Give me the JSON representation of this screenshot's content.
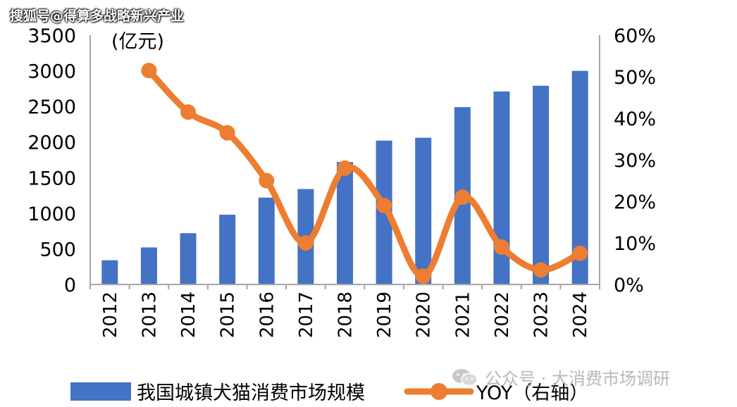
{
  "watermark_top": "搜狐号@得算多战略新兴产业",
  "watermark_bottom": "公众号 · 大消费市场调研",
  "colors": {
    "bar": "#4472C4",
    "line": "#ED7D31",
    "axis": "#a6a6a6",
    "text": "#000000"
  },
  "chart_data": {
    "type": "bar",
    "ylabel": "(亿元)",
    "categories": [
      "2012",
      "2013",
      "2014",
      "2015",
      "2016",
      "2017",
      "2018",
      "2019",
      "2020",
      "2021",
      "2022",
      "2023",
      "2024"
    ],
    "series": [
      {
        "name": "我国城镇犬猫消费市场规模",
        "type": "bar",
        "axis": "left",
        "values": [
          340,
          520,
          720,
          980,
          1220,
          1340,
          1720,
          2020,
          2060,
          2490,
          2710,
          2790,
          3000
        ]
      },
      {
        "name": "YOY（右轴）",
        "type": "line",
        "axis": "right",
        "values": [
          null,
          51.5,
          41.5,
          36.5,
          25.0,
          10.0,
          28.0,
          19.0,
          2.0,
          21.0,
          9.0,
          3.5,
          7.5
        ]
      }
    ],
    "ylim_left": [
      0,
      3500
    ],
    "yticks_left": [
      "0",
      "500",
      "1000",
      "1500",
      "2000",
      "2500",
      "3000",
      "3500"
    ],
    "ylim_right": [
      0,
      60
    ],
    "yticks_right": [
      "0%",
      "10%",
      "20%",
      "30%",
      "40%",
      "50%",
      "60%"
    ],
    "legend_position": "bottom",
    "grid": false
  }
}
